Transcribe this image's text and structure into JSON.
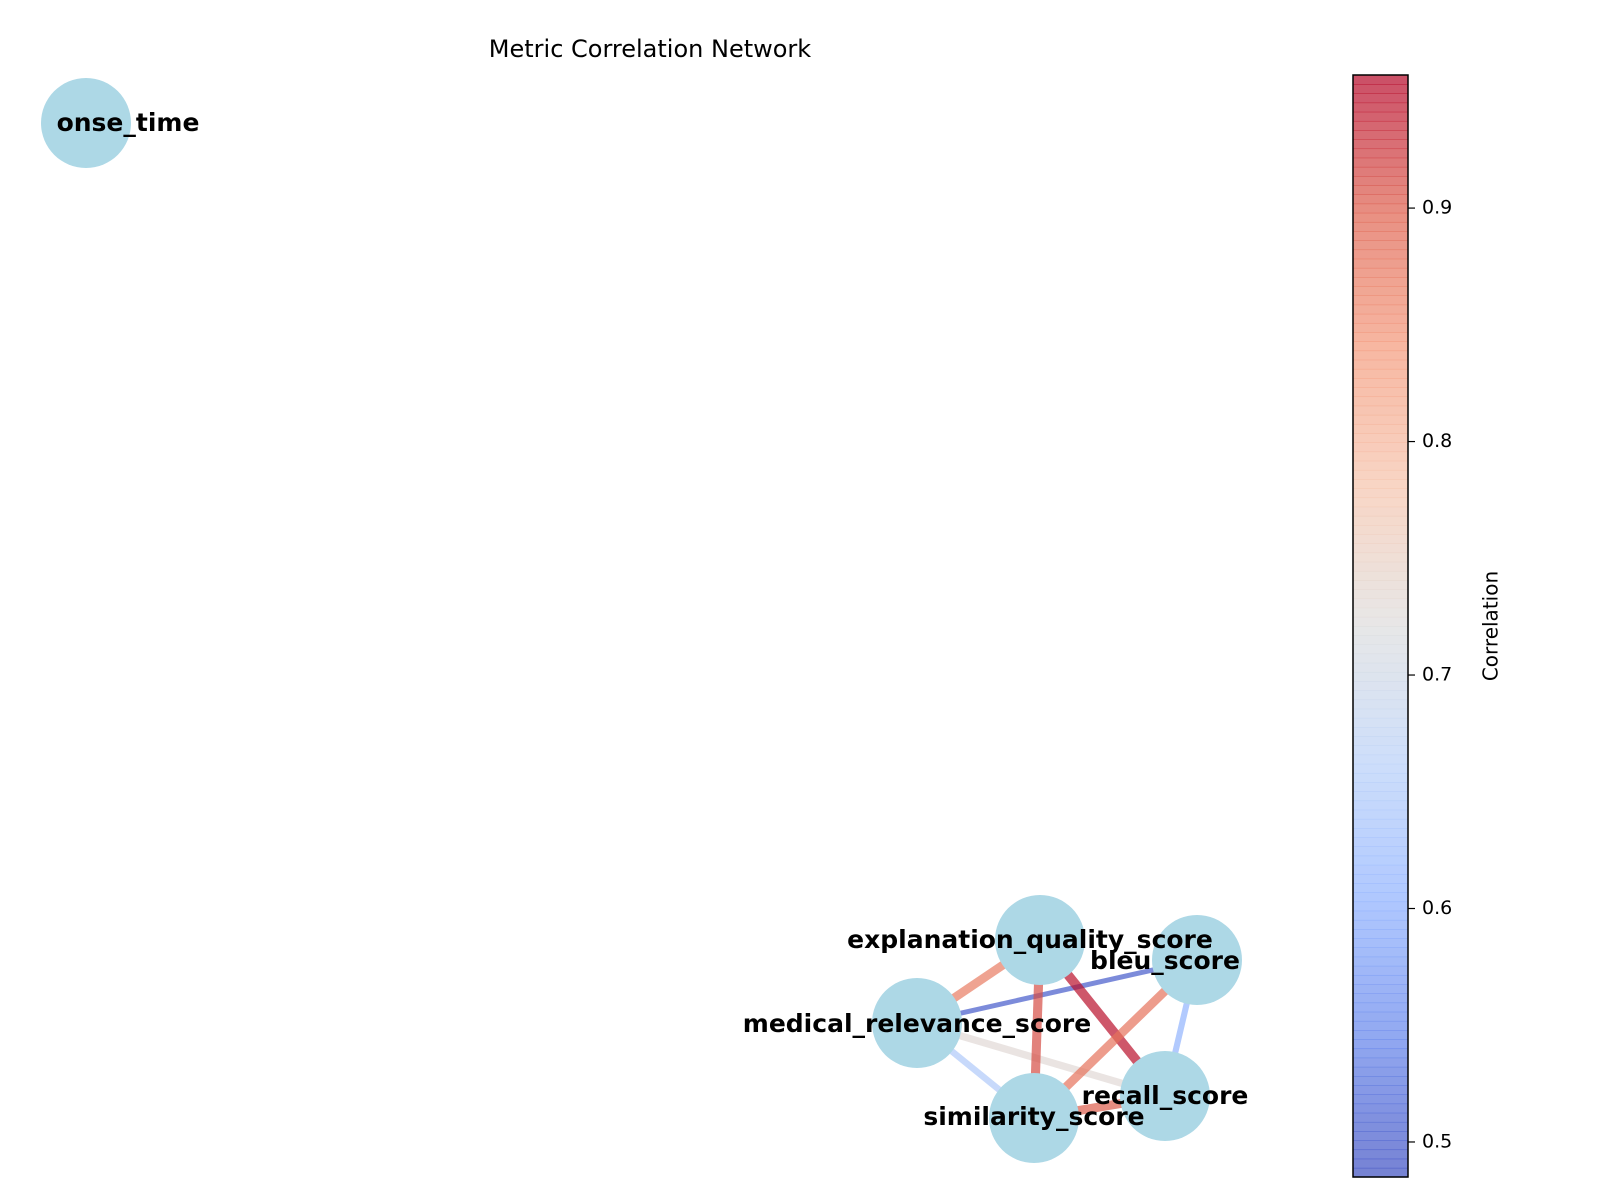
{
  "chart_data": {
    "type": "network",
    "title": "Metric Correlation Network",
    "nodes": [
      {
        "id": "response_time",
        "label": "onse_time"
      },
      {
        "id": "explanation_quality_score",
        "label": "explanation_quality_score"
      },
      {
        "id": "bleu_score",
        "label": "bleu_score"
      },
      {
        "id": "medical_relevance_score",
        "label": "medical_relevance_score"
      },
      {
        "id": "similarity_score",
        "label": "similarity_score"
      },
      {
        "id": "recall_score",
        "label": "recall_score"
      }
    ],
    "edges": [
      {
        "source": "medical_relevance_score",
        "target": "explanation_quality_score",
        "value": 0.87
      },
      {
        "source": "medical_relevance_score",
        "target": "bleu_score",
        "value": 0.5
      },
      {
        "source": "medical_relevance_score",
        "target": "recall_score",
        "value": 0.73
      },
      {
        "source": "medical_relevance_score",
        "target": "similarity_score",
        "value": 0.65
      },
      {
        "source": "explanation_quality_score",
        "target": "similarity_score",
        "value": 0.91
      },
      {
        "source": "explanation_quality_score",
        "target": "recall_score",
        "value": 0.95
      },
      {
        "source": "bleu_score",
        "target": "similarity_score",
        "value": 0.88
      },
      {
        "source": "bleu_score",
        "target": "recall_score",
        "value": 0.61
      },
      {
        "source": "similarity_score",
        "target": "recall_score",
        "value": 0.9
      }
    ],
    "colorbar": {
      "label": "Correlation",
      "colormap": "coolwarm",
      "range": [
        0.485,
        0.957
      ],
      "ticks": [
        0.5,
        0.6,
        0.7,
        0.8,
        0.9
      ],
      "tick_labels": [
        "0.5",
        "0.6",
        "0.7",
        "0.8",
        "0.9"
      ]
    },
    "node_color": "#add8e6"
  }
}
